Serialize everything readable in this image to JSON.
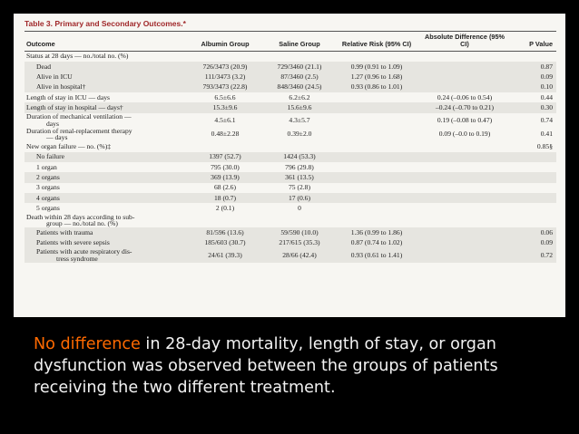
{
  "table": {
    "title": "Table 3. Primary and Secondary Outcomes.*",
    "columns": {
      "outcome": "Outcome",
      "albumin": "Albumin Group",
      "saline": "Saline Group",
      "rr": "Relative Risk (95% CI)",
      "diff": "Absolute Difference (95% CI)",
      "p": "P Value"
    },
    "rows": [
      {
        "outcome": "Status at 28 days — no./total no. (%)",
        "cont": "",
        "albumin": "",
        "saline": "",
        "rr": "",
        "diff": "",
        "p": ""
      },
      {
        "outcome": "Dead",
        "cont": "",
        "albumin": "726/3473 (20.9)",
        "saline": "729/3460 (21.1)",
        "rr": "0.99 (0.91 to 1.09)",
        "diff": "",
        "p": "0.87"
      },
      {
        "outcome": "Alive in ICU",
        "cont": "",
        "albumin": "111/3473 (3.2)",
        "saline": "87/3460 (2.5)",
        "rr": "1.27 (0.96 to 1.68)",
        "diff": "",
        "p": "0.09"
      },
      {
        "outcome": "Alive in hospital†",
        "cont": "",
        "albumin": "793/3473 (22.8)",
        "saline": "848/3460 (24.5)",
        "rr": "0.93 (0.86 to 1.01)",
        "diff": "",
        "p": "0.10"
      },
      {
        "outcome": "Length of stay in ICU — days",
        "cont": "",
        "albumin": "6.5±6.6",
        "saline": "6.2±6.2",
        "rr": "",
        "diff": "0.24 (–0.06 to 0.54)",
        "p": "0.44"
      },
      {
        "outcome": "Length of stay in hospital — days†",
        "cont": "",
        "albumin": "15.3±9.6",
        "saline": "15.6±9.6",
        "rr": "",
        "diff": "–0.24 (–0.70 to 0.21)",
        "p": "0.30"
      },
      {
        "outcome": "Duration of mechanical ventilation —",
        "cont": "days",
        "albumin": "4.5±6.1",
        "saline": "4.3±5.7",
        "rr": "",
        "diff": "0.19 (–0.08 to 0.47)",
        "p": "0.74"
      },
      {
        "outcome": "Duration of renal-replacement therapy",
        "cont": "— days",
        "albumin": "0.48±2.28",
        "saline": "0.39±2.0",
        "rr": "",
        "diff": "0.09 (–0.0 to 0.19)",
        "p": "0.41"
      },
      {
        "outcome": "New organ failure — no. (%)‡",
        "cont": "",
        "albumin": "",
        "saline": "",
        "rr": "",
        "diff": "",
        "p": "0.85§"
      },
      {
        "outcome": "No failure",
        "cont": "",
        "albumin": "1397 (52.7)",
        "saline": "1424 (53.3)",
        "rr": "",
        "diff": "",
        "p": ""
      },
      {
        "outcome": "1 organ",
        "cont": "",
        "albumin": "795 (30.0)",
        "saline": "796 (29.8)",
        "rr": "",
        "diff": "",
        "p": ""
      },
      {
        "outcome": "2 organs",
        "cont": "",
        "albumin": "369 (13.9)",
        "saline": "361 (13.5)",
        "rr": "",
        "diff": "",
        "p": ""
      },
      {
        "outcome": "3 organs",
        "cont": "",
        "albumin": "68 (2.6)",
        "saline": "75 (2.8)",
        "rr": "",
        "diff": "",
        "p": ""
      },
      {
        "outcome": "4 organs",
        "cont": "",
        "albumin": "18 (0.7)",
        "saline": "17 (0.6)",
        "rr": "",
        "diff": "",
        "p": ""
      },
      {
        "outcome": "5 organs",
        "cont": "",
        "albumin": "2 (0.1)",
        "saline": "0",
        "rr": "",
        "diff": "",
        "p": ""
      },
      {
        "outcome": "Death within 28 days according to sub-",
        "cont": "group — no./total no. (%)",
        "albumin": "",
        "saline": "",
        "rr": "",
        "diff": "",
        "p": ""
      },
      {
        "outcome": "Patients with trauma",
        "cont": "",
        "albumin": "81/596 (13.6)",
        "saline": "59/590 (10.0)",
        "rr": "1.36 (0.99 to 1.86)",
        "diff": "",
        "p": "0.06"
      },
      {
        "outcome": "Patients with severe sepsis",
        "cont": "",
        "albumin": "185/603 (30.7)",
        "saline": "217/615 (35.3)",
        "rr": "0.87 (0.74 to 1.02)",
        "diff": "",
        "p": "0.09"
      },
      {
        "outcome": "Patients with acute respiratory dis-",
        "cont": "tress syndrome",
        "albumin": "24/61 (39.3)",
        "saline": "28/66 (42.4)",
        "rr": "0.93 (0.61 to 1.41)",
        "diff": "",
        "p": "0.72"
      }
    ]
  },
  "caption": {
    "highlight": "No difference",
    "text": " in 28-day mortality, length of stay, or organ dysfunction was observed between the groups of patients receiving the two different treatment."
  },
  "colors": {
    "background": "#000000",
    "highlight": "#ff6a00",
    "caption_text": "#f2f2f2",
    "table_title": "#a0282a",
    "row_shade": "#e6e5e0"
  }
}
